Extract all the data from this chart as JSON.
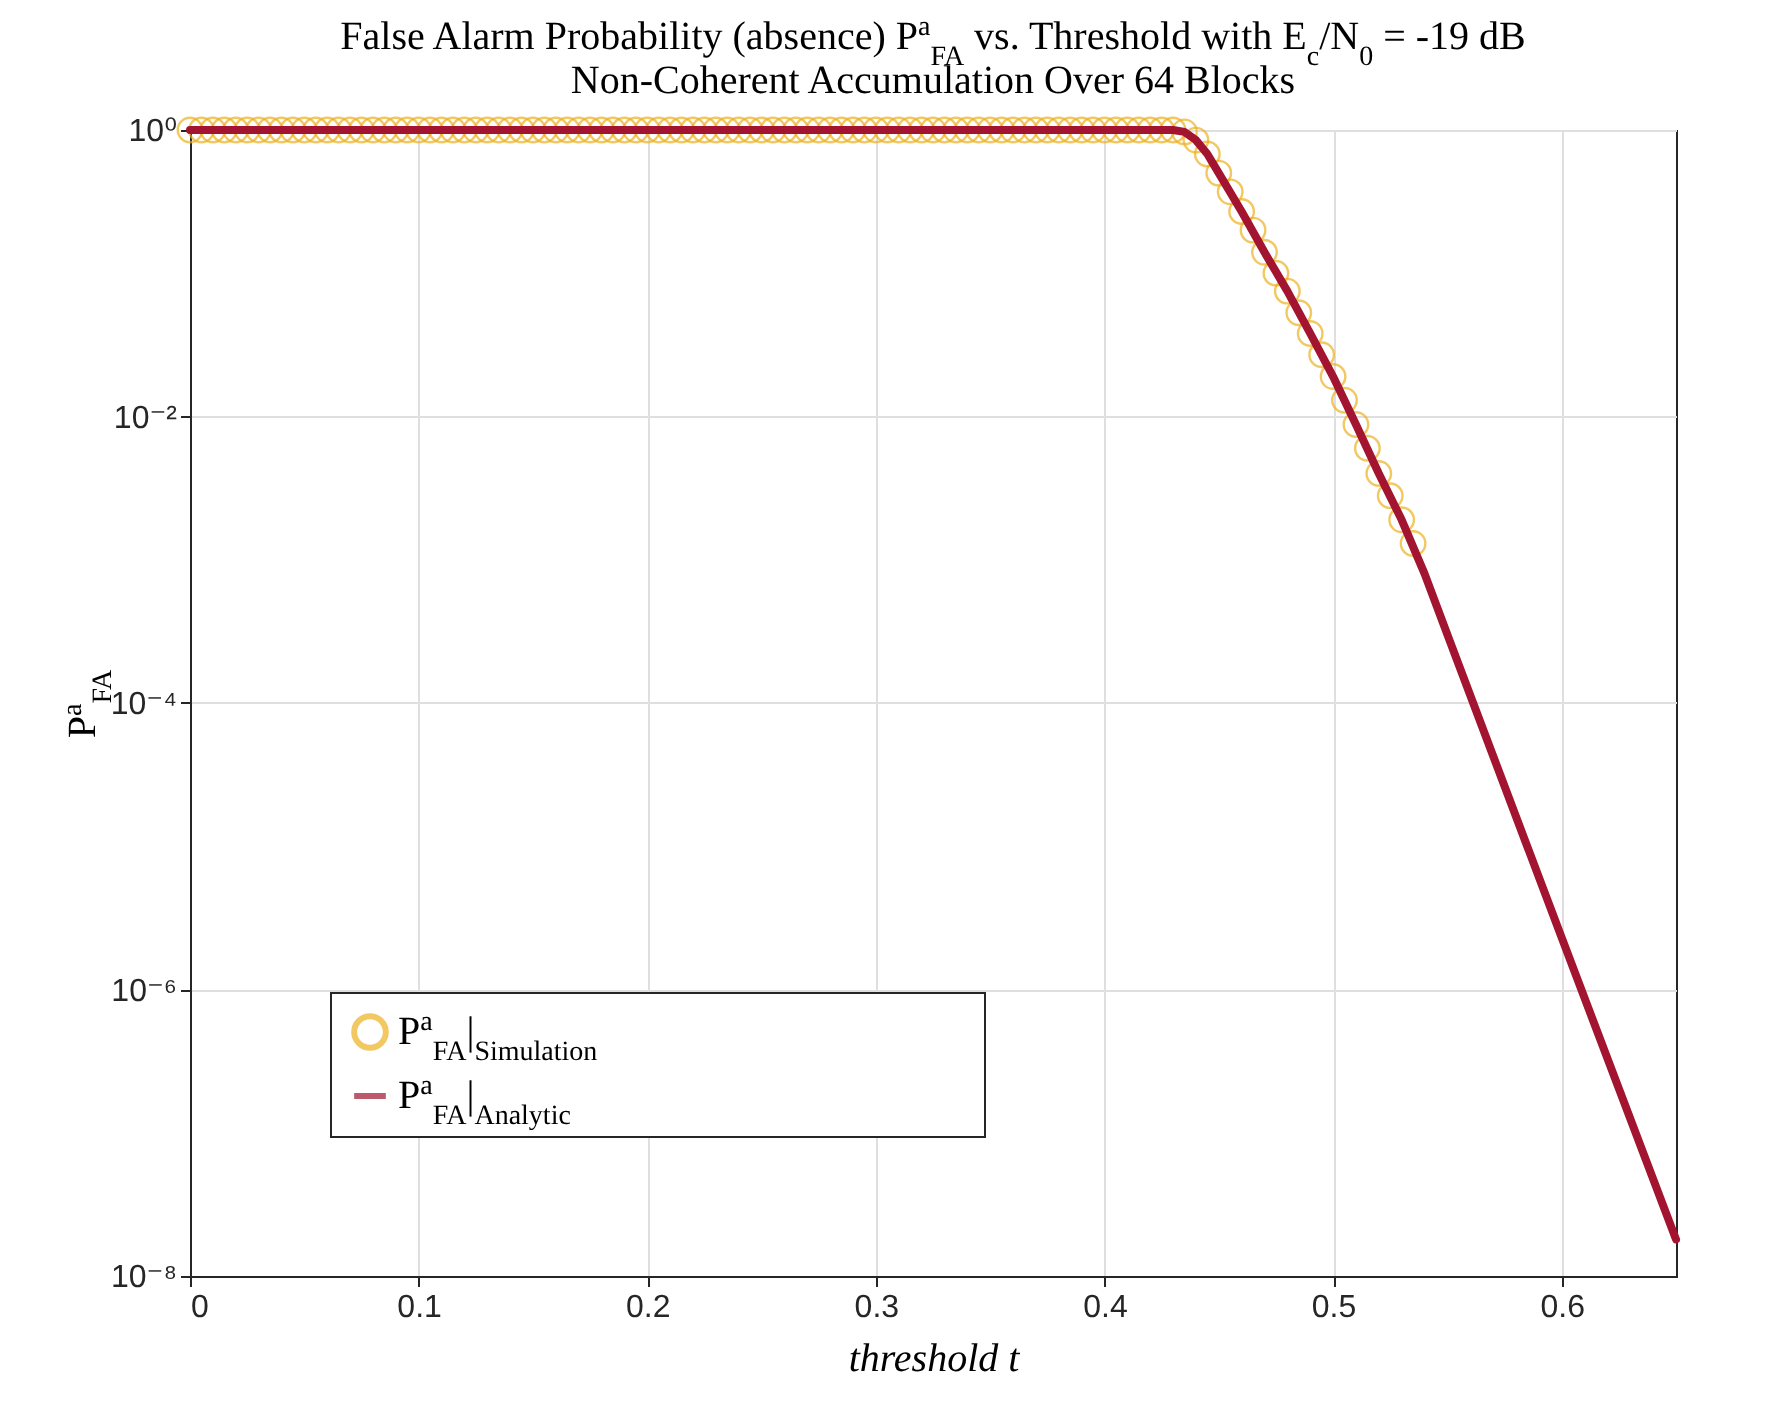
{
  "chart_data": {
    "type": "line",
    "title": "False Alarm Probability (absence) P$^{a}$$_{FA}$ vs. Threshold with E$_{c}$/N$_{0}$ = -19 dB",
    "subtitle": "Non-Coherent Accumulation Over 64 Blocks",
    "xlabel": "threshold   t",
    "ylabel": "P$^{a}$$_{FA}$",
    "log": "y",
    "grid": true,
    "legend": "bottom left",
    "xlim": [
      0,
      0.65
    ],
    "xticks": [
      0,
      0.1,
      0.2,
      0.3,
      0.4,
      0.5,
      0.6
    ],
    "ylim": [
      1e-08,
      1
    ],
    "yticks": [
      {
        "value": 1e-08,
        "label": "10⁻⁸"
      },
      {
        "value": 1e-06,
        "label": "10⁻⁶"
      },
      {
        "value": 0.0001,
        "label": "10⁻⁴"
      },
      {
        "value": 0.01,
        "label": "10⁻²"
      },
      {
        "value": 1,
        "label": "10⁰"
      }
    ],
    "series": [
      {
        "name": "P$^{a}$$_{FA}$|$_{Simulation}$",
        "type": "scatter",
        "marker": "circle",
        "color": "#edb120",
        "x": [
          0,
          0.005,
          0.01,
          0.015,
          0.02,
          0.025,
          0.03,
          0.035,
          0.04,
          0.045,
          0.05,
          0.055,
          0.06,
          0.065,
          0.07,
          0.075,
          0.08,
          0.085,
          0.09,
          0.095,
          0.1,
          0.105,
          0.11,
          0.115,
          0.12,
          0.125,
          0.13,
          0.135,
          0.14,
          0.145,
          0.15,
          0.155,
          0.16,
          0.165,
          0.17,
          0.175,
          0.18,
          0.185,
          0.19,
          0.195,
          0.2,
          0.205,
          0.21,
          0.215,
          0.22,
          0.225,
          0.23,
          0.235,
          0.24,
          0.245,
          0.25,
          0.255,
          0.26,
          0.265,
          0.27,
          0.275,
          0.28,
          0.285,
          0.29,
          0.295,
          0.3,
          0.305,
          0.31,
          0.315,
          0.32,
          0.325,
          0.33,
          0.335,
          0.34,
          0.345,
          0.35,
          0.355,
          0.36,
          0.365,
          0.37,
          0.375,
          0.38,
          0.385,
          0.39,
          0.395,
          0.4,
          0.405,
          0.41,
          0.415,
          0.42,
          0.425,
          0.43,
          0.435,
          0.44,
          0.445,
          0.45,
          0.455,
          0.46,
          0.465,
          0.47,
          0.475,
          0.48,
          0.485,
          0.49,
          0.495,
          0.5,
          0.505,
          0.51,
          0.515,
          0.52,
          0.525,
          0.53,
          0.535
        ],
        "values": [
          1,
          1,
          1,
          1,
          1,
          1,
          1,
          1,
          1,
          1,
          1,
          1,
          1,
          1,
          1,
          1,
          1,
          1,
          1,
          1,
          1,
          1,
          1,
          1,
          1,
          1,
          1,
          1,
          1,
          1,
          1,
          1,
          1,
          1,
          1,
          1,
          1,
          1,
          1,
          1,
          1,
          1,
          1,
          1,
          1,
          1,
          1,
          1,
          1,
          1,
          1,
          1,
          1,
          1,
          1,
          1,
          1,
          1,
          1,
          1,
          1,
          1,
          1,
          1,
          1,
          1,
          1,
          1,
          1,
          1,
          1,
          1,
          1,
          1,
          1,
          1,
          1,
          1,
          1,
          1,
          1,
          1,
          1,
          1,
          1,
          1,
          1,
          0.97,
          0.85,
          0.68,
          0.5,
          0.37,
          0.27,
          0.2,
          0.14,
          0.1,
          0.075,
          0.053,
          0.038,
          0.027,
          0.019,
          0.013,
          0.0088,
          0.006,
          0.004,
          0.0028,
          0.0019,
          0.0013
        ]
      },
      {
        "name": "P$^{a}$$_{FA}$|$_{Analytic}$",
        "line_style": "solid",
        "color": "#a2142f",
        "x": [
          0,
          0.42,
          0.43,
          0.435,
          0.44,
          0.445,
          0.45,
          0.46,
          0.47,
          0.48,
          0.49,
          0.5,
          0.51,
          0.52,
          0.53,
          0.54,
          0.55,
          0.6,
          0.65
        ],
        "values": [
          1,
          1,
          1,
          0.97,
          0.85,
          0.68,
          0.5,
          0.27,
          0.14,
          0.075,
          0.038,
          0.019,
          0.0088,
          0.004,
          0.0019,
          0.0008,
          0.0003,
          2.3e-06,
          1.8e-08
        ]
      }
    ]
  }
}
